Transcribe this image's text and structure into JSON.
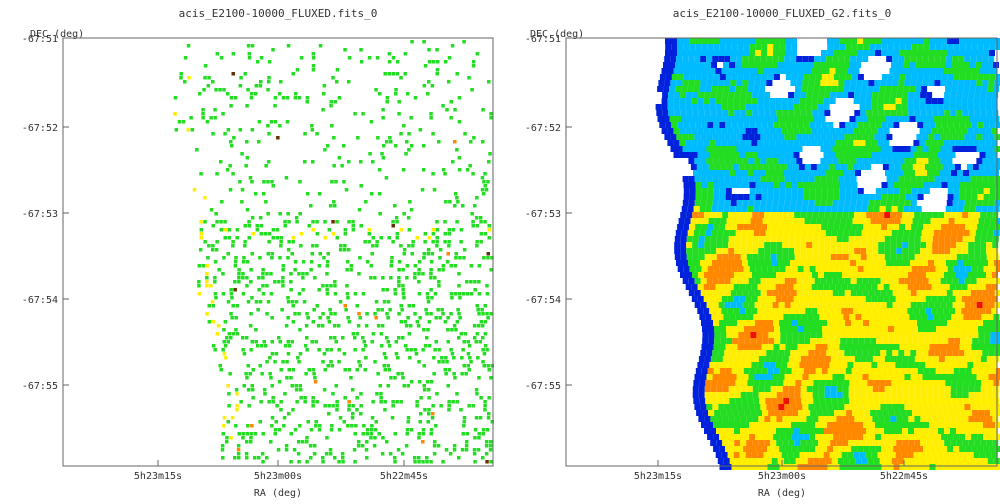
{
  "chart_data": [
    {
      "type": "heatmap",
      "title": "acis_E2100-10000_FLUXED.fits_0",
      "xlabel": "RA (deg)",
      "ylabel": "DEC (deg)",
      "x_ticks": [
        "5h23m15s",
        "5h23m00s",
        "5h22m45s"
      ],
      "y_ticks": [
        "-67:51",
        "-67:52",
        "-67:53",
        "-67:54",
        "-67:55"
      ],
      "style": "sparse-counts",
      "colors": {
        "low": "#22dd22",
        "mid": "#ffee00",
        "high": "#ff8800",
        "peak": "#663300"
      },
      "grid": false
    },
    {
      "type": "heatmap",
      "title": "acis_E2100-10000_FLUXED_G2.fits_0",
      "xlabel": "RA (deg)",
      "ylabel": "DEC (deg)",
      "x_ticks": [
        "5h23m15s",
        "5h23m00s",
        "5h22m45s"
      ],
      "y_ticks": [
        "-67:51",
        "-67:52",
        "-67:53",
        "-67:54",
        "-67:55"
      ],
      "style": "smoothed",
      "colors": {
        "c0": "#0022dd",
        "c1": "#00bbff",
        "c2": "#22dd22",
        "c3": "#ffee00",
        "c4": "#ff8800",
        "c5": "#ee1100"
      },
      "grid": false
    }
  ]
}
